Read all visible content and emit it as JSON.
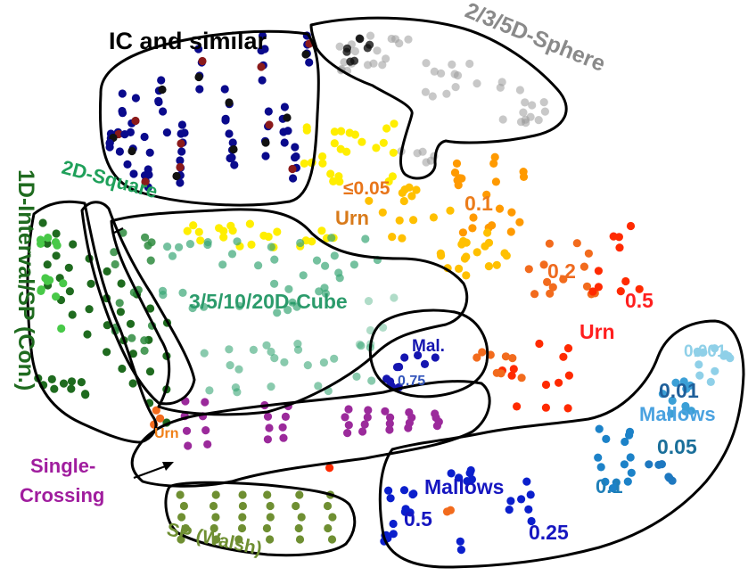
{
  "colors": {
    "ic": [
      "#0a0a8c",
      "#8b1a1a",
      "#111111"
    ],
    "sphere": "#9a9a9a",
    "urn_yellow": "#ffee00",
    "urn_005": "#ffc000",
    "urn_01": "#ff9a00",
    "urn_02": "#f26b1d",
    "urn_05": "#ff2a00",
    "interval_dark": "#1f6b1f",
    "interval_light": "#48c948",
    "square": "#2e8b3e",
    "cube": "#3aa776",
    "single_crossing": "#9b2a9b",
    "walsh": "#6f8f32",
    "mallows_blue": "#0b1fcc",
    "mallows_001": "#8fd0e8",
    "mallows_01": "#3b9fd6",
    "mallows_005": "#1c82c8",
    "mallows_01b": "#1e78c0",
    "mal_small": "#1515b0"
  },
  "labels": {
    "ic": "IC and similar",
    "sphere": "2/3/5D-Sphere",
    "interval": "1D-Interval/SP (Con.)",
    "square": "2D-Square",
    "cube": "3/5/10/20D-Cube",
    "urn_le005": "≤0.05",
    "urn_1": "Urn",
    "urn_01": "0.1",
    "urn_02": "0.2",
    "urn_05": "0.5",
    "urn_2": "Urn",
    "urn_small": "Urn",
    "mal": "Mal.",
    "mal_075": "0.75",
    "mallows_001": "0.001",
    "mallows_01": "0.01",
    "mallows_label_right": "Mallows",
    "mallows_005": "0.05",
    "mallows_1": "0.1",
    "mallows_label_bottom": "Mallows",
    "mallows_05": "0.5",
    "mallows_025": "0.25",
    "single_crossing_1": "Single-",
    "single_crossing_2": "Crossing",
    "walsh": "SP (Walsh)"
  }
}
